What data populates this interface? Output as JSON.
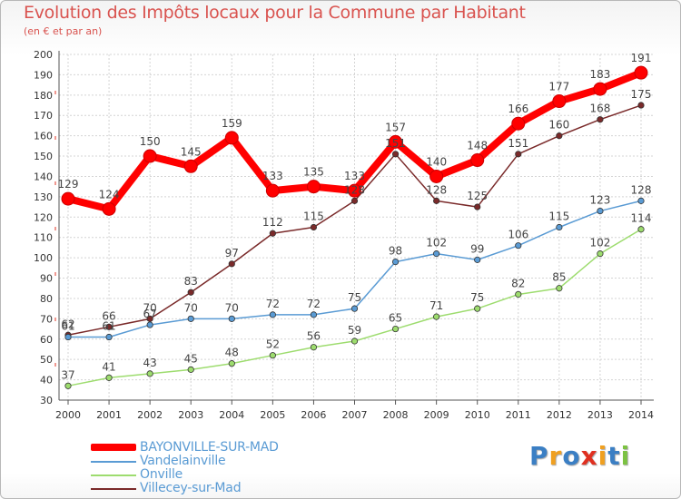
{
  "chart_data": {
    "type": "line",
    "title": "Evolution des Impôts locaux pour la Commune par Habitant",
    "subtitle": "(en € et par an)",
    "xlabel": "",
    "ylabel": "",
    "ylim": [
      30,
      200
    ],
    "ytick_step": 10,
    "grid": true,
    "categories": [
      "2000",
      "2001",
      "2002",
      "2003",
      "2004",
      "2005",
      "2006",
      "2007",
      "2008",
      "2009",
      "2010",
      "2011",
      "2012",
      "2013",
      "2014"
    ],
    "series": [
      {
        "name": "BAYONVILLE-SUR-MAD",
        "color": "#ff0000",
        "values": [
          129,
          124,
          150,
          145,
          159,
          133,
          135,
          133,
          157,
          140,
          148,
          166,
          177,
          183,
          191
        ]
      },
      {
        "name": "Vandelainville",
        "color": "#5a9bd4",
        "values": [
          61,
          61,
          67,
          70,
          70,
          72,
          72,
          75,
          98,
          102,
          99,
          106,
          115,
          123,
          128
        ]
      },
      {
        "name": "Onville",
        "color": "#9ddc6e",
        "values": [
          37,
          41,
          43,
          45,
          48,
          52,
          56,
          59,
          65,
          71,
          75,
          82,
          85,
          102,
          114
        ]
      },
      {
        "name": "Villecey-sur-Mad",
        "color": "#7a2a2a",
        "values": [
          62,
          66,
          70,
          83,
          97,
          112,
          115,
          128,
          151,
          128,
          125,
          151,
          160,
          168,
          175
        ]
      }
    ]
  },
  "legend": {
    "items": [
      {
        "label": "BAYONVILLE-SUR-MAD",
        "color": "#ff0000"
      },
      {
        "label": "Vandelainville",
        "color": "#5a9bd4"
      },
      {
        "label": "Onville",
        "color": "#9ddc6e"
      },
      {
        "label": "Villecey-sur-Mad",
        "color": "#7a2a2a"
      }
    ]
  },
  "logo": {
    "text": "Proxiti",
    "letters": [
      {
        "ch": "P",
        "color": "#3b7fc4"
      },
      {
        "ch": "r",
        "color": "#f0a020"
      },
      {
        "ch": "o",
        "color": "#3b7fc4"
      },
      {
        "ch": "x",
        "color": "#e03020"
      },
      {
        "ch": "i",
        "color": "#f0a020"
      },
      {
        "ch": "t",
        "color": "#3b7fc4"
      },
      {
        "ch": "i",
        "color": "#7cc242"
      }
    ]
  }
}
